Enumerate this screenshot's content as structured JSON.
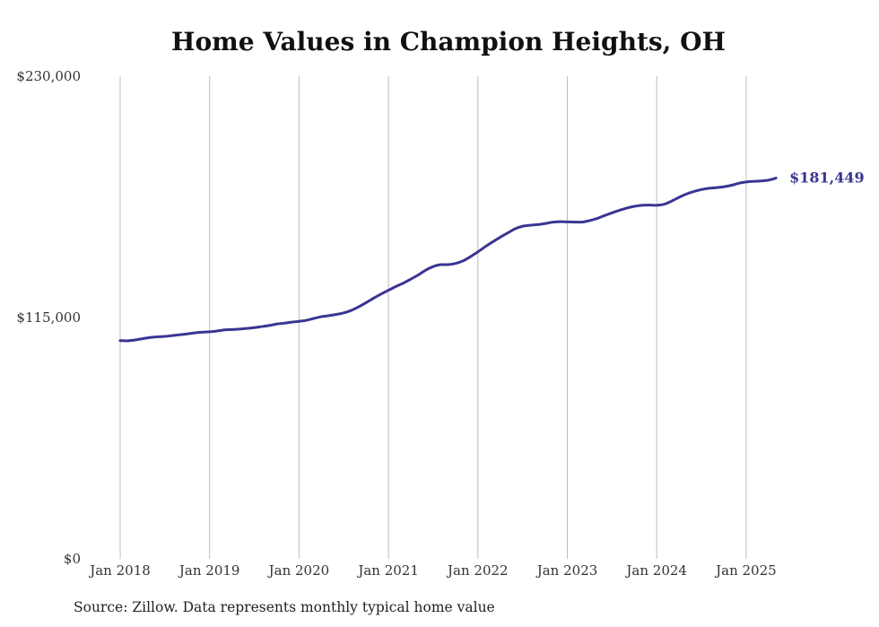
{
  "chart_data": {
    "type": "line",
    "title": "Home Values in Champion Heights, OH",
    "xlabel": "",
    "ylabel": "",
    "ylim": [
      0,
      230000
    ],
    "y_ticks": [
      {
        "value": 0,
        "label": "$0"
      },
      {
        "value": 115000,
        "label": "$115,000"
      },
      {
        "value": 230000,
        "label": "$230,000"
      }
    ],
    "x_ticks": [
      {
        "year": 2018,
        "label": "Jan 2018"
      },
      {
        "year": 2019,
        "label": "Jan 2019"
      },
      {
        "year": 2020,
        "label": "Jan 2020"
      },
      {
        "year": 2021,
        "label": "Jan 2021"
      },
      {
        "year": 2022,
        "label": "Jan 2022"
      },
      {
        "year": 2023,
        "label": "Jan 2023"
      },
      {
        "year": 2024,
        "label": "Jan 2024"
      },
      {
        "year": 2025,
        "label": "Jan 2025"
      }
    ],
    "grid": "vertical",
    "series": [
      {
        "color": "#3a3593",
        "points": [
          [
            "2018-01",
            104000
          ],
          [
            "2018-02",
            103900
          ],
          [
            "2018-03",
            104300
          ],
          [
            "2018-04",
            104900
          ],
          [
            "2018-05",
            105500
          ],
          [
            "2018-06",
            105800
          ],
          [
            "2018-07",
            106000
          ],
          [
            "2018-08",
            106400
          ],
          [
            "2018-09",
            106800
          ],
          [
            "2018-10",
            107200
          ],
          [
            "2018-11",
            107700
          ],
          [
            "2018-12",
            108000
          ],
          [
            "2019-01",
            108200
          ],
          [
            "2019-02",
            108600
          ],
          [
            "2019-03",
            109100
          ],
          [
            "2019-04",
            109300
          ],
          [
            "2019-05",
            109500
          ],
          [
            "2019-06",
            109800
          ],
          [
            "2019-07",
            110200
          ],
          [
            "2019-08",
            110700
          ],
          [
            "2019-09",
            111200
          ],
          [
            "2019-10",
            111900
          ],
          [
            "2019-11",
            112300
          ],
          [
            "2019-12",
            112800
          ],
          [
            "2020-01",
            113200
          ],
          [
            "2020-02",
            113700
          ],
          [
            "2020-03",
            114600
          ],
          [
            "2020-04",
            115400
          ],
          [
            "2020-05",
            115900
          ],
          [
            "2020-06",
            116500
          ],
          [
            "2020-07",
            117200
          ],
          [
            "2020-08",
            118400
          ],
          [
            "2020-09",
            120100
          ],
          [
            "2020-10",
            122100
          ],
          [
            "2020-11",
            124200
          ],
          [
            "2020-12",
            126200
          ],
          [
            "2021-01",
            128000
          ],
          [
            "2021-02",
            129800
          ],
          [
            "2021-03",
            131400
          ],
          [
            "2021-04",
            133300
          ],
          [
            "2021-05",
            135300
          ],
          [
            "2021-06",
            137600
          ],
          [
            "2021-07",
            139300
          ],
          [
            "2021-08",
            140200
          ],
          [
            "2021-09",
            140200
          ],
          [
            "2021-10",
            140800
          ],
          [
            "2021-11",
            142000
          ],
          [
            "2021-12",
            144000
          ],
          [
            "2022-01",
            146300
          ],
          [
            "2022-02",
            148800
          ],
          [
            "2022-03",
            151100
          ],
          [
            "2022-04",
            153300
          ],
          [
            "2022-05",
            155300
          ],
          [
            "2022-06",
            157300
          ],
          [
            "2022-07",
            158500
          ],
          [
            "2022-08",
            159000
          ],
          [
            "2022-09",
            159300
          ],
          [
            "2022-10",
            159800
          ],
          [
            "2022-11",
            160400
          ],
          [
            "2022-12",
            160700
          ],
          [
            "2023-01",
            160600
          ],
          [
            "2023-02",
            160500
          ],
          [
            "2023-03",
            160500
          ],
          [
            "2023-04",
            161200
          ],
          [
            "2023-05",
            162200
          ],
          [
            "2023-06",
            163600
          ],
          [
            "2023-07",
            164900
          ],
          [
            "2023-08",
            166100
          ],
          [
            "2023-09",
            167200
          ],
          [
            "2023-10",
            168000
          ],
          [
            "2023-11",
            168500
          ],
          [
            "2023-12",
            168600
          ],
          [
            "2024-01",
            168500
          ],
          [
            "2024-02",
            169000
          ],
          [
            "2024-03",
            170500
          ],
          [
            "2024-04",
            172300
          ],
          [
            "2024-05",
            173900
          ],
          [
            "2024-06",
            175100
          ],
          [
            "2024-07",
            176000
          ],
          [
            "2024-08",
            176600
          ],
          [
            "2024-09",
            176900
          ],
          [
            "2024-10",
            177300
          ],
          [
            "2024-11",
            178000
          ],
          [
            "2024-12",
            179000
          ],
          [
            "2025-01",
            179600
          ],
          [
            "2025-02",
            179900
          ],
          [
            "2025-03",
            180100
          ],
          [
            "2025-04",
            180500
          ],
          [
            "2025-05",
            181449
          ]
        ]
      }
    ],
    "end_label": "$181,449"
  },
  "source_note": "Source: Zillow. Data represents monthly typical home value"
}
